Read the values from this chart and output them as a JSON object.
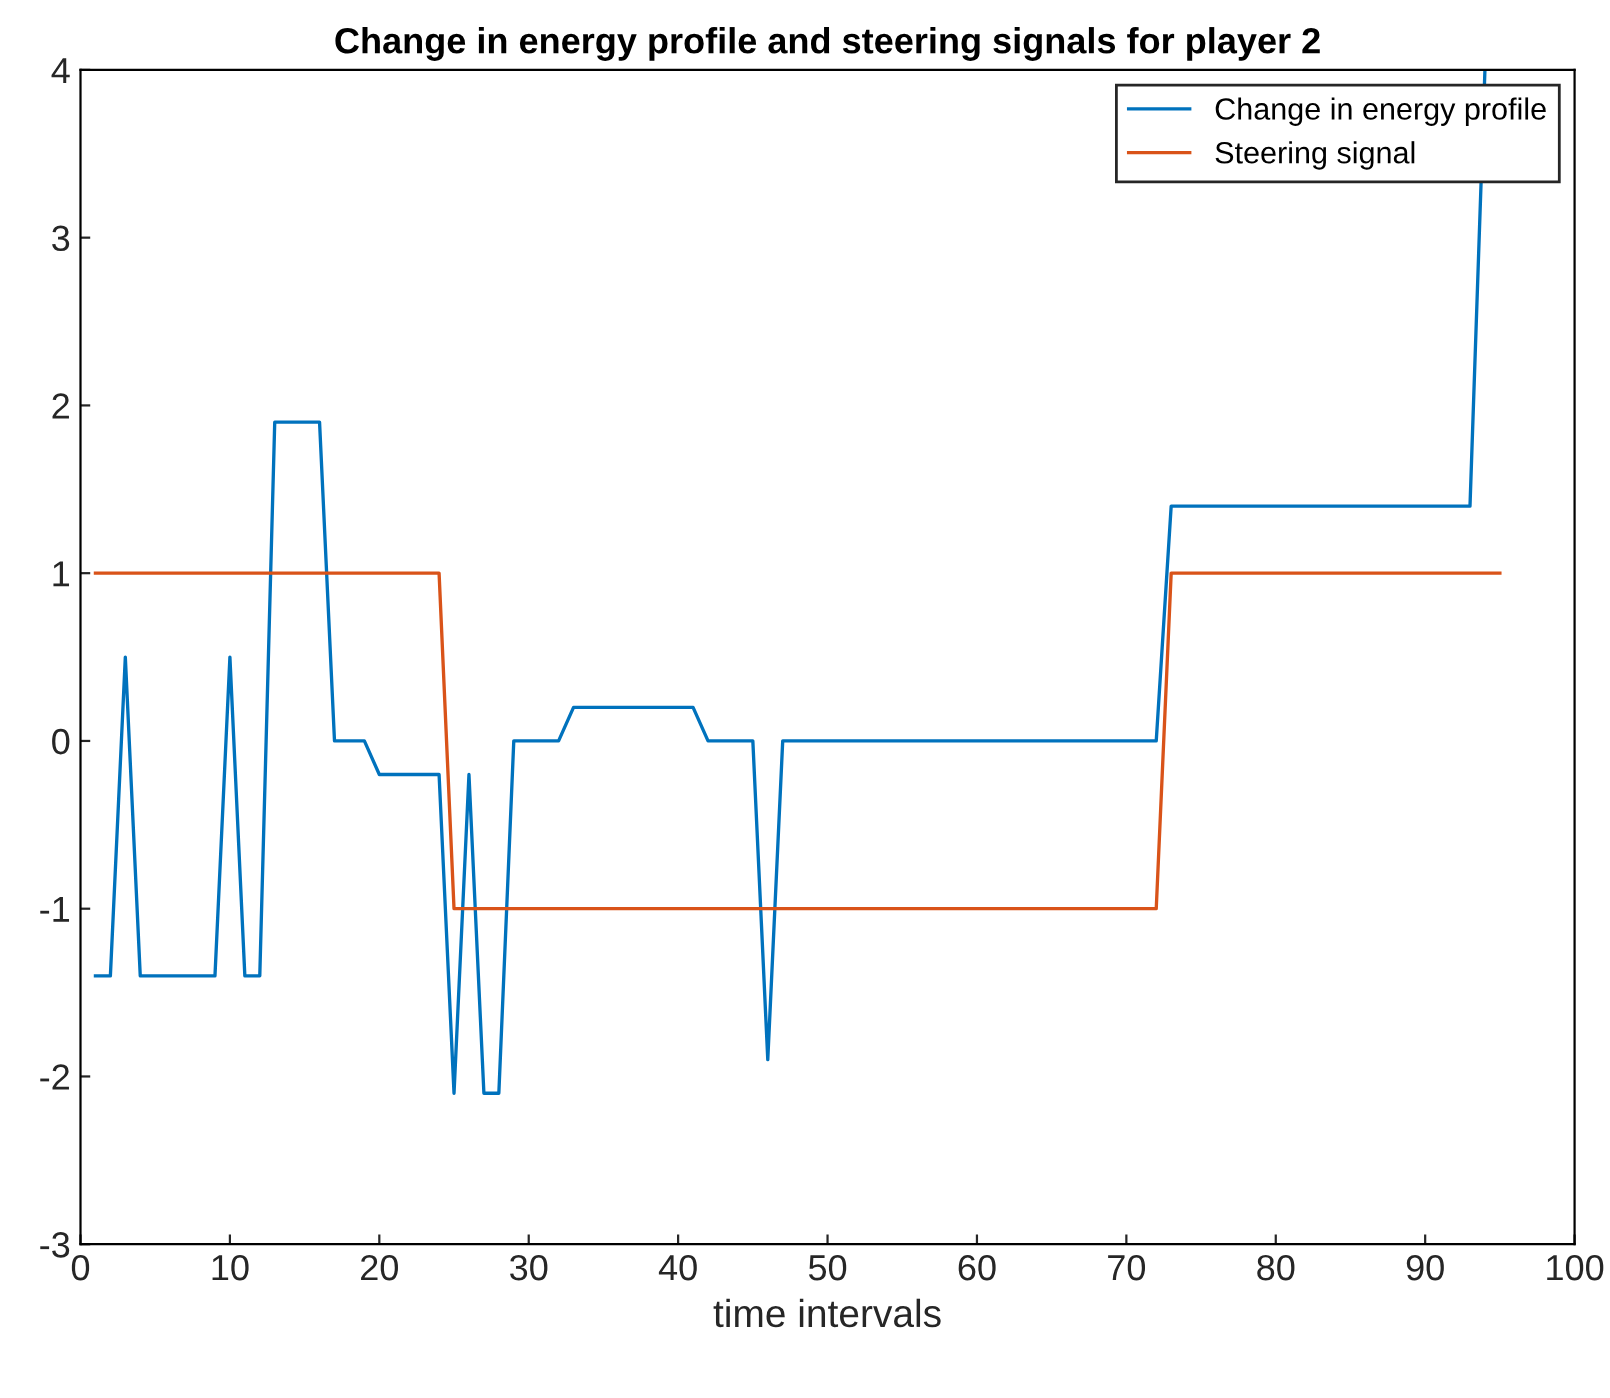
{
  "chart_data": {
    "type": "line",
    "title": "Change in energy profile and steering signals for player 2",
    "xlabel": "time intervals",
    "series": [
      {
        "name": "Change in energy profile",
        "color": "#0072bd",
        "x": [
          1,
          2,
          3,
          4,
          9,
          10,
          11,
          12,
          13,
          16,
          17,
          19,
          20,
          24,
          25,
          26,
          27,
          28,
          29,
          32,
          33,
          41,
          42,
          45,
          46,
          47,
          72,
          73,
          93,
          94
        ],
        "values": [
          -1.4,
          -1.4,
          0.5,
          -1.4,
          -1.4,
          0.5,
          -1.4,
          -1.4,
          1.9,
          1.9,
          0,
          0,
          -0.2,
          -0.2,
          -2.1,
          -0.2,
          -2.1,
          -2.1,
          0,
          0,
          0.2,
          0.2,
          0,
          0,
          -1.9,
          0,
          0,
          1.4,
          1.4,
          4
        ]
      },
      {
        "name": "Steering signal",
        "color": "#d95319",
        "x": [
          1,
          24,
          25,
          72,
          73,
          95
        ],
        "values": [
          1,
          1,
          -1,
          -1,
          1,
          1
        ]
      }
    ],
    "xlim": [
      0,
      100
    ],
    "xticks": [
      0,
      10,
      20,
      30,
      40,
      50,
      60,
      70,
      80,
      90,
      100
    ],
    "ylim": [
      -3,
      4
    ],
    "yticks": [
      -3,
      -2,
      -1,
      0,
      1,
      2,
      3,
      4
    ],
    "grid": false,
    "legend": "top right",
    "marker": "none",
    "line_style": "solid"
  }
}
